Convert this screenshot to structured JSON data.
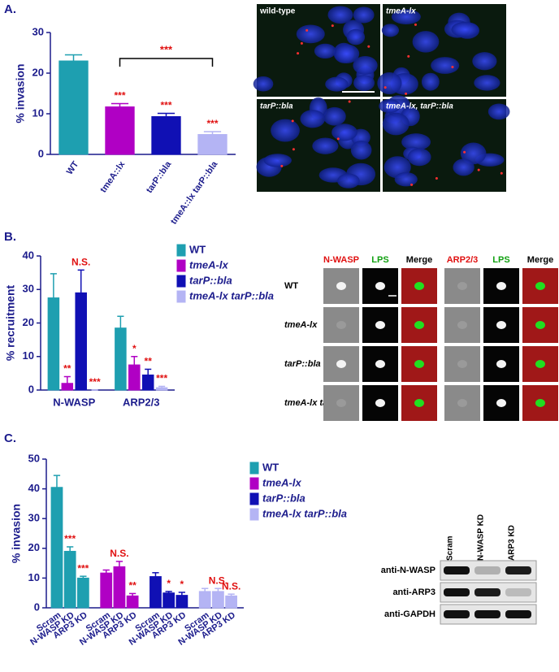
{
  "chart_data": [
    {
      "type": "bar",
      "label": "A.",
      "ylabel": "% invasion",
      "categories": [
        "WT",
        "tmeA::lx",
        "tarP::bla",
        "tmeA::lx tarP::bla"
      ],
      "values": [
        23,
        11.7,
        9.3,
        4.9
      ],
      "errors": [
        1.5,
        0.8,
        0.8,
        0.7
      ],
      "colors": [
        "#1e9fb0",
        "#b000c4",
        "#1010b4",
        "#b4b4f4"
      ],
      "significance": [
        null,
        "***",
        "***",
        "***"
      ],
      "bracket": "***",
      "ylim": [
        0,
        30
      ],
      "yticks": [
        0,
        10,
        20,
        30
      ]
    },
    {
      "type": "bar",
      "label": "B.",
      "ylabel": "% recruitment",
      "grouping": "category",
      "categories": [
        "N-WASP",
        "ARP2/3"
      ],
      "series": [
        {
          "name": "WT",
          "color": "#1e9fb0",
          "values": [
            27.5,
            18.5
          ],
          "errors": [
            7.2,
            3.5
          ],
          "significance": [
            null,
            null
          ]
        },
        {
          "name": "tmeA-lx",
          "color": "#b000c4",
          "values": [
            2,
            7.5
          ],
          "errors": [
            2,
            2.5
          ],
          "significance": [
            "**",
            "*"
          ]
        },
        {
          "name": "tarP::bla",
          "color": "#1010b4",
          "values": [
            29,
            4.5
          ],
          "errors": [
            6.8,
            1.7
          ],
          "significance": [
            "N.S.",
            "**"
          ]
        },
        {
          "name": "tmeA-lx tarP::bla",
          "color": "#b4b4f4",
          "values": [
            0,
            0.7
          ],
          "errors": [
            0,
            0.4
          ],
          "significance": [
            "***",
            "***"
          ]
        }
      ],
      "ylim": [
        0,
        40
      ],
      "yticks": [
        0,
        10,
        20,
        30,
        40
      ]
    },
    {
      "type": "bar",
      "label": "C.",
      "ylabel": "% invasion",
      "grouping": "series",
      "categories": [
        "Scram",
        "N-WASP KD",
        "ARP3 KD"
      ],
      "series": [
        {
          "name": "WT",
          "color": "#1e9fb0",
          "values": [
            40.5,
            19,
            10
          ],
          "errors": [
            4,
            1.5,
            0.6
          ],
          "significance": [
            null,
            "***",
            "***"
          ]
        },
        {
          "name": "tmeA-lx",
          "color": "#b000c4",
          "values": [
            11.7,
            13.8,
            4
          ],
          "errors": [
            1,
            1.8,
            0.8
          ],
          "significance": [
            null,
            "N.S.",
            "**"
          ]
        },
        {
          "name": "tarP::bla",
          "color": "#1010b4",
          "values": [
            10.5,
            5,
            4.2
          ],
          "errors": [
            1.3,
            0.5,
            1
          ],
          "significance": [
            null,
            "*",
            "*"
          ]
        },
        {
          "name": "tmeA-lx tarP::bla",
          "color": "#b4b4f4",
          "values": [
            5.5,
            5.5,
            4
          ],
          "errors": [
            1,
            1,
            0.6
          ],
          "significance": [
            null,
            "N.S.",
            "N.S."
          ]
        }
      ],
      "ylim": [
        0,
        50
      ],
      "yticks": [
        0,
        10,
        20,
        30,
        40,
        50
      ]
    }
  ],
  "images_a": {
    "labels": [
      "wild-type",
      "tmeA-lx",
      "tarP::bla",
      "tmeA-lx, tarP::bla"
    ]
  },
  "images_b": {
    "columns": [
      "N-WASP",
      "LPS",
      "Merge",
      "ARP2/3",
      "LPS",
      "Merge"
    ],
    "rows": [
      "WT",
      "tmeA-lx",
      "tarP::bla",
      "tmeA-lx tarP::bla"
    ]
  },
  "blot": {
    "columns": [
      "Scram",
      "N-WASP KD",
      "ARP3 KD"
    ],
    "rows": [
      "anti-N-WASP",
      "anti-ARP3",
      "anti-GAPDH"
    ]
  }
}
